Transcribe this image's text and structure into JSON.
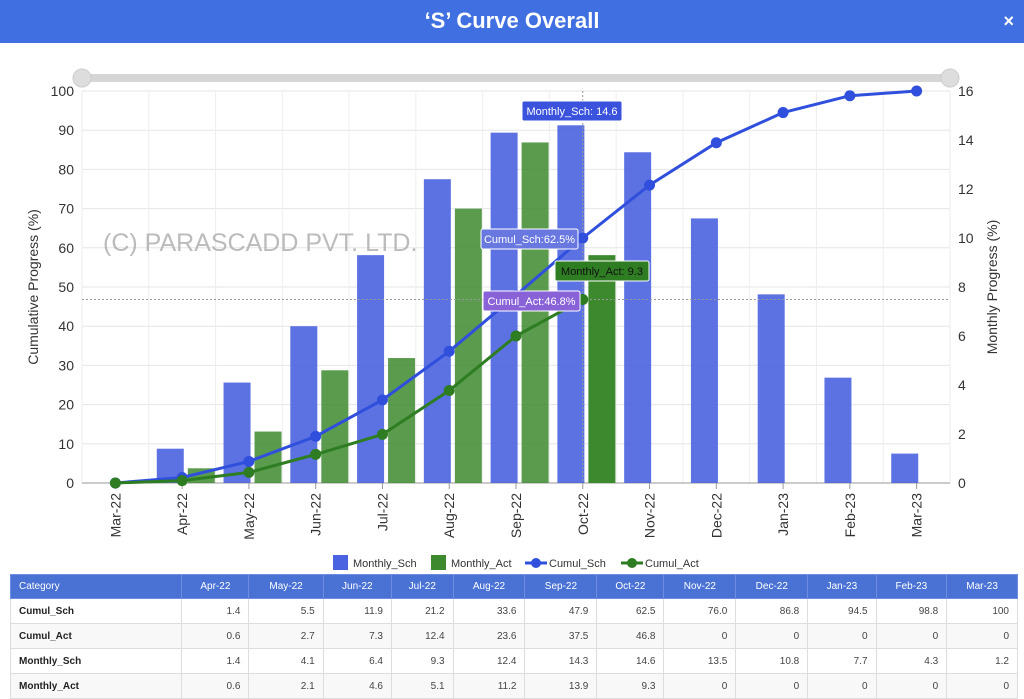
{
  "header": {
    "title": "‘S’ Curve Overall",
    "close": "×"
  },
  "watermark": "(C) PARASCADD PVT. LTD.",
  "chart_data": {
    "type": "bar+line",
    "categories": [
      "Mar-22",
      "Apr-22",
      "May-22",
      "Jun-22",
      "Jul-22",
      "Aug-22",
      "Sep-22",
      "Oct-22",
      "Nov-22",
      "Dec-22",
      "Jan-23",
      "Feb-23",
      "Mar-23"
    ],
    "ylabel_left": "Cumulative Progress (%)",
    "ylim_left": [
      0,
      100
    ],
    "yticks_left": [
      0,
      10,
      20,
      30,
      40,
      50,
      60,
      70,
      80,
      90,
      100
    ],
    "ylabel_right": "Monthly Progress (%)",
    "ylim_right": [
      0,
      16
    ],
    "yticks_right": [
      0,
      2,
      4,
      6,
      8,
      10,
      12,
      14,
      16
    ],
    "series": [
      {
        "name": "Monthly_Sch",
        "type": "bar",
        "axis": "right",
        "color": "#4a63e0",
        "values": [
          0,
          1.4,
          4.1,
          6.4,
          9.3,
          12.4,
          14.3,
          14.6,
          13.5,
          10.8,
          7.7,
          4.3,
          1.2
        ]
      },
      {
        "name": "Monthly_Act",
        "type": "bar",
        "axis": "right",
        "color": "#3d8a2e",
        "values": [
          0,
          0.6,
          2.1,
          4.6,
          5.1,
          11.2,
          13.9,
          9.3,
          null,
          null,
          null,
          null,
          null
        ]
      },
      {
        "name": "Cumul_Sch",
        "type": "line",
        "axis": "left",
        "color": "#2f4fdc",
        "values": [
          0,
          1.4,
          5.5,
          11.9,
          21.2,
          33.6,
          47.9,
          62.5,
          76.0,
          86.8,
          94.5,
          98.8,
          100
        ]
      },
      {
        "name": "Cumul_Act",
        "type": "line",
        "axis": "left",
        "color": "#2e7d22",
        "values": [
          0,
          0.6,
          2.7,
          7.3,
          12.4,
          23.6,
          37.5,
          46.8,
          null,
          null,
          null,
          null,
          null
        ]
      }
    ],
    "tooltips": [
      "Monthly_Sch: 14.6",
      "Cumul_Sch:62.5%",
      "Monthly_Act: 9.3",
      "Cumul_Act:46.8%"
    ],
    "legend": "bottom",
    "grid": true
  },
  "table": {
    "headers": [
      "Category",
      "Apr-22",
      "May-22",
      "Jun-22",
      "Jul-22",
      "Aug-22",
      "Sep-22",
      "Oct-22",
      "Nov-22",
      "Dec-22",
      "Jan-23",
      "Feb-23",
      "Mar-23"
    ],
    "rows": [
      [
        "Cumul_Sch",
        "1.4",
        "5.5",
        "11.9",
        "21.2",
        "33.6",
        "47.9",
        "62.5",
        "76.0",
        "86.8",
        "94.5",
        "98.8",
        "100"
      ],
      [
        "Cumul_Act",
        "0.6",
        "2.7",
        "7.3",
        "12.4",
        "23.6",
        "37.5",
        "46.8",
        "0",
        "0",
        "0",
        "0",
        "0"
      ],
      [
        "Monthly_Sch",
        "1.4",
        "4.1",
        "6.4",
        "9.3",
        "12.4",
        "14.3",
        "14.6",
        "13.5",
        "10.8",
        "7.7",
        "4.3",
        "1.2"
      ],
      [
        "Monthly_Act",
        "0.6",
        "2.1",
        "4.6",
        "5.1",
        "11.2",
        "13.9",
        "9.3",
        "0",
        "0",
        "0",
        "0",
        "0"
      ]
    ]
  }
}
